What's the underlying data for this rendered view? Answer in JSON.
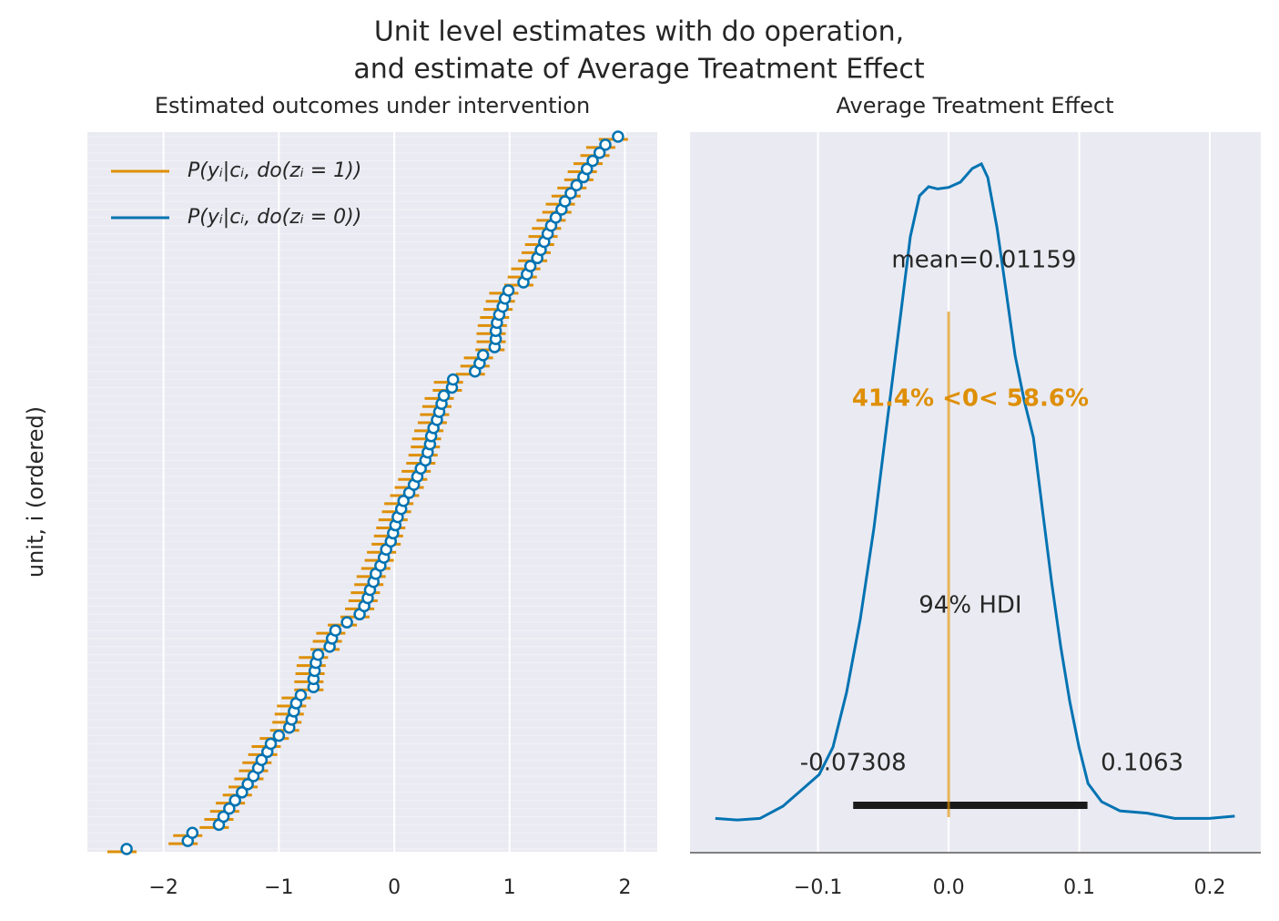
{
  "suptitle": [
    "Unit level estimates with do operation,",
    "and estimate of Average Treatment Effect"
  ],
  "chart_data": [
    {
      "type": "forest",
      "title": "Estimated outcomes under intervention",
      "ylabel": "unit, i (ordered)",
      "xlim": [
        -2.66,
        2.28
      ],
      "xticks": [
        {
          "value": -2,
          "label": "−2"
        },
        {
          "value": -1,
          "label": "−1"
        },
        0,
        1,
        2
      ],
      "grid": true,
      "legend": "upper left",
      "series": [
        {
          "name": "P(yᵢ|cᵢ, do(zᵢ = 1))",
          "color": "#de8f05",
          "values": [
            -2.36,
            -1.83,
            -1.79,
            -1.56,
            -1.52,
            -1.47,
            -1.42,
            -1.36,
            -1.31,
            -1.26,
            -1.22,
            -1.19,
            -1.14,
            -1.11,
            -1.04,
            -0.95,
            -0.93,
            -0.91,
            -0.89,
            -0.85,
            -0.74,
            -0.74,
            -0.73,
            -0.72,
            -0.7,
            -0.6,
            -0.58,
            -0.55,
            -0.45,
            -0.34,
            -0.3,
            -0.27,
            -0.25,
            -0.22,
            -0.2,
            -0.16,
            -0.13,
            -0.11,
            -0.07,
            -0.05,
            -0.03,
            -0.01,
            0.02,
            0.04,
            0.09,
            0.13,
            0.16,
            0.19,
            0.23,
            0.25,
            0.27,
            0.28,
            0.3,
            0.33,
            0.35,
            0.37,
            0.39,
            0.46,
            0.47,
            0.66,
            0.7,
            0.73,
            0.83,
            0.84,
            0.84,
            0.85,
            0.87,
            0.9,
            0.92,
            0.95,
            1.08,
            1.11,
            1.14,
            1.2,
            1.23,
            1.26,
            1.29,
            1.32,
            1.36,
            1.41,
            1.44,
            1.49,
            1.54,
            1.6,
            1.63,
            1.68,
            1.74,
            1.79,
            1.9
          ]
        },
        {
          "name": "P(yᵢ|cᵢ, do(zᵢ = 0))",
          "color": "#0173b2",
          "values": [
            -2.32,
            -1.79,
            -1.75,
            -1.52,
            -1.48,
            -1.43,
            -1.38,
            -1.32,
            -1.27,
            -1.22,
            -1.18,
            -1.15,
            -1.1,
            -1.07,
            -1.0,
            -0.91,
            -0.89,
            -0.87,
            -0.85,
            -0.81,
            -0.7,
            -0.7,
            -0.69,
            -0.68,
            -0.66,
            -0.56,
            -0.54,
            -0.51,
            -0.41,
            -0.3,
            -0.26,
            -0.23,
            -0.21,
            -0.18,
            -0.16,
            -0.12,
            -0.09,
            -0.07,
            -0.03,
            -0.01,
            0.01,
            0.03,
            0.06,
            0.08,
            0.13,
            0.17,
            0.2,
            0.23,
            0.27,
            0.29,
            0.31,
            0.32,
            0.34,
            0.37,
            0.39,
            0.41,
            0.43,
            0.5,
            0.51,
            0.7,
            0.74,
            0.77,
            0.87,
            0.88,
            0.88,
            0.89,
            0.91,
            0.94,
            0.96,
            0.99,
            1.12,
            1.15,
            1.18,
            1.24,
            1.27,
            1.3,
            1.33,
            1.36,
            1.4,
            1.45,
            1.48,
            1.53,
            1.58,
            1.64,
            1.67,
            1.72,
            1.78,
            1.83,
            1.94
          ]
        }
      ]
    },
    {
      "type": "kde",
      "title": "Average Treatment Effect",
      "xlim": [
        -0.198,
        0.239
      ],
      "ylim": [
        0,
        9.5
      ],
      "xticks": [
        {
          "value": -0.1,
          "label": "−0.1"
        },
        {
          "value": 0,
          "label": "0.0"
        },
        {
          "value": 0.1,
          "label": "0.1"
        },
        {
          "value": 0.2,
          "label": "0.2"
        }
      ],
      "grid": true,
      "color": "#0173b2",
      "x": [
        -0.1786,
        -0.1619,
        -0.1445,
        -0.127,
        -0.113,
        -0.0991,
        -0.0886,
        -0.0782,
        -0.0677,
        -0.0572,
        -0.0468,
        -0.0363,
        -0.0293,
        -0.0223,
        -0.0153,
        -0.0084,
        0,
        0.0091,
        0.0181,
        0.0251,
        0.03,
        0.037,
        0.044,
        0.0509,
        0.0579,
        0.0649,
        0.0719,
        0.0789,
        0.0858,
        0.0928,
        0.0998,
        0.1068,
        0.1172,
        0.1312,
        0.1521,
        0.1731,
        0.1996,
        0.2191
      ],
      "values": [
        0.44,
        0.42,
        0.44,
        0.6,
        0.81,
        1.02,
        1.38,
        2.1,
        3.07,
        4.27,
        5.71,
        7.15,
        8.12,
        8.66,
        8.78,
        8.75,
        8.77,
        8.84,
        9.02,
        9.08,
        8.9,
        8.24,
        7.4,
        6.55,
        5.95,
        5.47,
        4.51,
        3.55,
        2.71,
        1.98,
        1.38,
        0.9,
        0.66,
        0.54,
        0.51,
        0.44,
        0.44,
        0.47
      ],
      "mean_label": "mean=0.01159",
      "ref_val": 0,
      "ref_color": "#de8f05",
      "ref_label": "41.4% <0< 58.6%",
      "hdi_label": "94% HDI",
      "hdi": [
        -0.07308,
        0.1063
      ]
    }
  ]
}
